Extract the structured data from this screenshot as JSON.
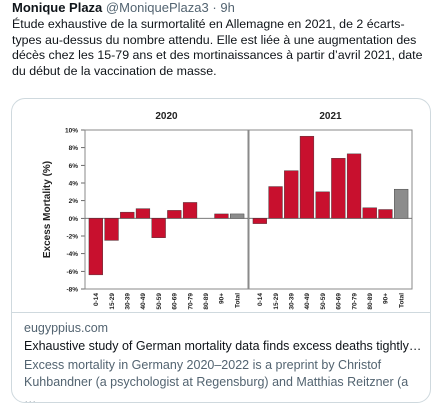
{
  "tweet": {
    "author_name": "Monique Plaza",
    "author_handle": "@MoniquePlaza3",
    "separator": "·",
    "time": "9h",
    "text_lines": [
      "Étude exhaustive de la surmortalité en Allemagne en 2021, de 2 écarts-",
      "types au-dessus du nombre attendu. Elle est liée à une augmentation des",
      "décès chez les 15-79 ans et des mortinaissances à partir d’avril 2021, date",
      "du début de la vaccination de masse."
    ]
  },
  "card": {
    "domain": "eugyppius.com",
    "title": "Exhaustive study of German mortality data finds excess deaths tightly…",
    "description_lines": [
      "Excess mortality in Germany 2020–2022 is a preprint by Christof",
      "Kuhbandner (a psychologist at Regensburg) and Matthias Reitzner (a …"
    ]
  },
  "colors": {
    "bar_red": "#c8102e",
    "bar_gray": "#8c8c8c",
    "panel_border": "#8a8a8a",
    "muted_text": "#536471"
  },
  "chart_data": {
    "type": "bar",
    "ylabel": "Excess Mortality (%)",
    "ylim": [
      -8,
      10
    ],
    "yticks": [
      "10%",
      "8%",
      "6%",
      "4%",
      "2%",
      "0%",
      "-2%",
      "-4%",
      "-6%",
      "-8%"
    ],
    "categories": [
      "0-14",
      "15-29",
      "30-39",
      "40-49",
      "50-59",
      "60-69",
      "70-79",
      "80-89",
      "90+",
      "Total"
    ],
    "panels": [
      {
        "title": "2020",
        "values": [
          -6.4,
          -2.5,
          0.7,
          1.1,
          -2.2,
          0.9,
          1.8,
          0.0,
          0.5,
          0.5
        ]
      },
      {
        "title": "2021",
        "values": [
          -0.6,
          3.6,
          5.4,
          9.3,
          3.0,
          6.8,
          7.3,
          1.2,
          1.0,
          3.3
        ]
      }
    ],
    "grid": false
  }
}
